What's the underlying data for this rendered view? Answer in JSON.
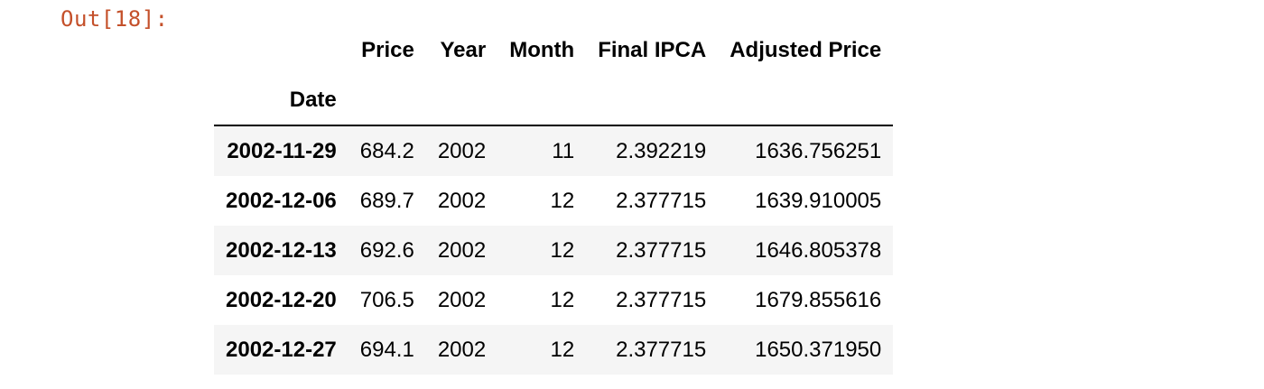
{
  "output_prompt": "Out[18]:",
  "table": {
    "columns": [
      "Price",
      "Year",
      "Month",
      "Final IPCA",
      "Adjusted Price"
    ],
    "index_name": "Date",
    "rows": [
      {
        "date": "2002-11-29",
        "price": "684.2",
        "year": "2002",
        "month": "11",
        "final_ipca": "2.392219",
        "adjusted_price": "1636.756251"
      },
      {
        "date": "2002-12-06",
        "price": "689.7",
        "year": "2002",
        "month": "12",
        "final_ipca": "2.377715",
        "adjusted_price": "1639.910005"
      },
      {
        "date": "2002-12-13",
        "price": "692.6",
        "year": "2002",
        "month": "12",
        "final_ipca": "2.377715",
        "adjusted_price": "1646.805378"
      },
      {
        "date": "2002-12-20",
        "price": "706.5",
        "year": "2002",
        "month": "12",
        "final_ipca": "2.377715",
        "adjusted_price": "1679.855616"
      },
      {
        "date": "2002-12-27",
        "price": "694.1",
        "year": "2002",
        "month": "12",
        "final_ipca": "2.377715",
        "adjusted_price": "1650.371950"
      }
    ]
  }
}
